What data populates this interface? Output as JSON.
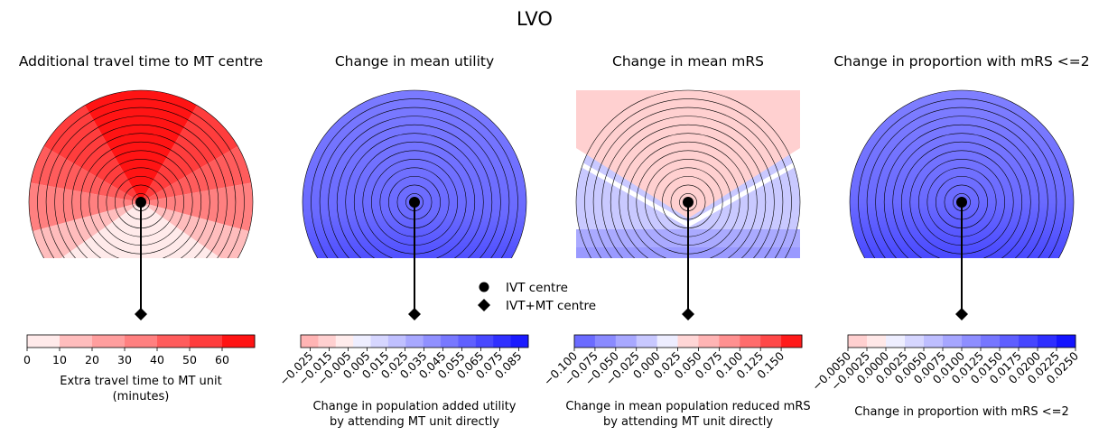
{
  "figure": {
    "title": "LVO"
  },
  "legend": {
    "items": [
      {
        "label": "IVT centre",
        "marker": "circle"
      },
      {
        "label": "IVT+MT centre",
        "marker": "diamond"
      }
    ]
  },
  "chart_data": [
    {
      "type": "heatmap",
      "title": "Additional travel time to MT centre",
      "colorbar": {
        "label_lines": [
          "Extra travel time to MT unit",
          "(minutes)"
        ],
        "ticks": [
          "0",
          "10",
          "20",
          "30",
          "40",
          "50",
          "60"
        ],
        "rotate_ticks": false,
        "bands": [
          "#ffeaea",
          "#ffbdbd",
          "#ff9e9e",
          "#ff8080",
          "#ff5c5c",
          "#ff3d3d",
          "#ff1414"
        ],
        "tick_positions": [
          0,
          1,
          2,
          3,
          4,
          5,
          6
        ],
        "tick_span": 7
      },
      "rings": 13,
      "sectors": [
        {
          "from_deg": 60,
          "to_deg": 120,
          "bands": [
            [
              "#ff1414",
              1
            ]
          ]
        },
        {
          "from_deg": 120,
          "to_deg": 150,
          "bands": [
            [
              "#ff3d3d",
              1
            ]
          ]
        },
        {
          "from_deg": 30,
          "to_deg": 60,
          "bands": [
            [
              "#ff3d3d",
              1
            ]
          ]
        },
        {
          "from_deg": 150,
          "to_deg": 170,
          "bands": [
            [
              "#ff5c5c",
              1
            ]
          ]
        },
        {
          "from_deg": 10,
          "to_deg": 30,
          "bands": [
            [
              "#ff5c5c",
              1
            ]
          ]
        },
        {
          "from_deg": 170,
          "to_deg": 195,
          "bands": [
            [
              "#ff8080",
              1
            ]
          ]
        },
        {
          "from_deg": -15,
          "to_deg": 10,
          "bands": [
            [
              "#ff8080",
              1
            ]
          ]
        },
        {
          "from_deg": 195,
          "to_deg": 215,
          "bands": [
            [
              "#ffbdbd",
              1
            ]
          ]
        },
        {
          "from_deg": -35,
          "to_deg": -15,
          "bands": [
            [
              "#ffbdbd",
              1
            ]
          ]
        },
        {
          "from_deg": 215,
          "to_deg": 325,
          "bands": [
            [
              "#ffeaea",
              1
            ]
          ]
        }
      ]
    },
    {
      "type": "heatmap",
      "title": "Change in mean utility",
      "colorbar": {
        "label_lines": [
          "Change in population added utility",
          "by attending MT unit directly"
        ],
        "ticks": [
          "−0.025",
          "−0.015",
          "−0.005",
          "0.005",
          "0.015",
          "0.025",
          "0.035",
          "0.045",
          "0.055",
          "0.065",
          "0.075",
          "0.085"
        ],
        "rotate_ticks": true,
        "bands": [
          "#ffb4b4",
          "#ffd0d0",
          "#ffecec",
          "#eeeeff",
          "#d6d6ff",
          "#c0c0ff",
          "#a8a8ff",
          "#9090ff",
          "#7878ff",
          "#6060ff",
          "#4848ff",
          "#3030ff",
          "#1a1aff"
        ],
        "tick_positions": [
          0.5,
          1.5,
          2.5,
          3.5,
          4.5,
          5.5,
          6.5,
          7.5,
          8.5,
          9.5,
          10.5,
          11.5
        ],
        "tick_span": 12,
        "first_band_width": 1
      },
      "rings": 13,
      "gradient": [
        [
          0,
          "#7b7bff"
        ],
        [
          0.55,
          "#6a6aff"
        ],
        [
          0.75,
          "#5050ff"
        ],
        [
          0.9,
          "#3b3bff"
        ],
        [
          1,
          "#2424ff"
        ]
      ]
    },
    {
      "type": "heatmap",
      "title": "Change in mean mRS",
      "colorbar": {
        "label_lines": [
          "Change in mean population reduced mRS",
          "by attending MT unit directly"
        ],
        "ticks": [
          "−0.100",
          "−0.075",
          "−0.050",
          "−0.025",
          "0.000",
          "0.025",
          "0.050",
          "0.075",
          "0.100",
          "0.125",
          "0.150"
        ],
        "rotate_ticks": true,
        "bands": [
          "#6b6bff",
          "#8a8aff",
          "#a8a8ff",
          "#c8c8ff",
          "#ededff",
          "#ffd6d6",
          "#ffb4b4",
          "#ff9090",
          "#ff6c6c",
          "#ff4848",
          "#ff1a1a"
        ],
        "tick_positions": [
          0,
          1,
          2,
          3,
          4,
          5,
          6,
          7,
          8,
          9,
          10
        ],
        "tick_span": 11,
        "first_band_width": 1
      },
      "rings": 13,
      "v_split": true
    },
    {
      "type": "heatmap",
      "title": "Change in proportion with mRS <=2",
      "colorbar": {
        "label_lines": [
          "Change in proportion with mRS <=2"
        ],
        "ticks": [
          "−0.0050",
          "−0.0025",
          "0.0000",
          "0.0025",
          "0.0050",
          "0.0075",
          "0.0100",
          "0.0125",
          "0.0150",
          "0.0175",
          "0.0200",
          "0.0225",
          "0.0250"
        ],
        "rotate_ticks": true,
        "bands": [
          "#ffd0d0",
          "#ffe8e8",
          "#eeeeff",
          "#d6d6ff",
          "#bebeff",
          "#a6a6ff",
          "#8e8eff",
          "#7676ff",
          "#5e5eff",
          "#4646ff",
          "#2e2eff",
          "#1414ff"
        ],
        "tick_positions": [
          0,
          1,
          2,
          3,
          4,
          5,
          6,
          7,
          8,
          9,
          10,
          11,
          12
        ],
        "tick_span": 12,
        "first_band_width": 1
      },
      "rings": 13,
      "gradient": [
        [
          0,
          "#8080ff"
        ],
        [
          0.5,
          "#6a6aff"
        ],
        [
          0.72,
          "#4d4dff"
        ],
        [
          0.88,
          "#3a3aff"
        ],
        [
          1,
          "#1e1eff"
        ]
      ]
    }
  ]
}
